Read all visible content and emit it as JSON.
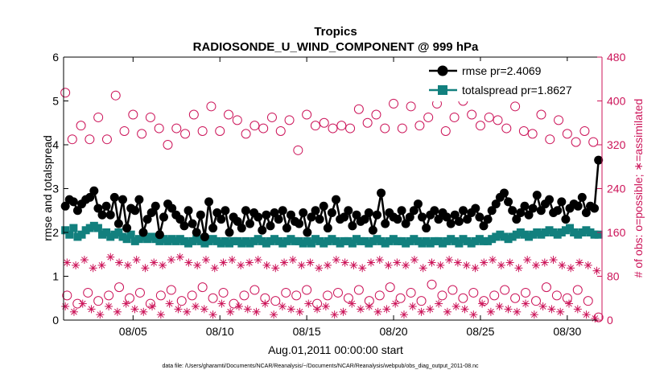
{
  "colors": {
    "rmse": "#000000",
    "spread": "#12807e",
    "obs": "#cc1459",
    "axis": "#000000"
  },
  "chart_data": {
    "type": "line",
    "title": "Tropics",
    "subtitle": "RADIOSONDE_U_WIND_COMPONENT @ 999 hPa",
    "xlabel": "Aug.01,2011 00:00:00 start",
    "ylabel": "rmse and totalspread",
    "ylabel_right": "# of obs: o=possible; ∗=assimilated",
    "footnote": "data file: /Users/gharamti/Documents/NCAR/Reanalysis/~/Documents/NCAR/Reanalysis/webpub/obs_diag_output_2011-08.nc",
    "xlim": [
      1,
      32
    ],
    "ylim": [
      0,
      6
    ],
    "ylim_right": [
      0,
      480
    ],
    "x_ticks": [
      5,
      10,
      15,
      20,
      25,
      30
    ],
    "x_tick_labels": [
      "08/05",
      "08/10",
      "08/15",
      "08/20",
      "08/25",
      "08/30"
    ],
    "y_ticks": [
      0,
      1,
      2,
      3,
      4,
      5,
      6
    ],
    "y_tick_labels": [
      "0",
      "1",
      "2",
      "3",
      "4",
      "5",
      "6"
    ],
    "y_right_ticks": [
      0,
      80,
      160,
      240,
      320,
      400,
      480
    ],
    "y_right_tick_labels": [
      "0",
      "80",
      "160",
      "240",
      "320",
      "400",
      "480"
    ],
    "legend": [
      "rmse pr=2.4069",
      "totalspread pr=1.8627"
    ],
    "legend_position": "top-right",
    "series": [
      {
        "name": "rmse",
        "marker": "circle",
        "values": [
          2.6,
          2.75,
          2.7,
          2.5,
          2.65,
          2.75,
          2.8,
          2.95,
          2.55,
          2.4,
          2.6,
          2.4,
          2.8,
          2.2,
          2.75,
          2.1,
          2.55,
          2.5,
          2.75,
          2.0,
          2.3,
          2.45,
          2.6,
          1.95,
          2.35,
          2.65,
          2.55,
          2.4,
          2.3,
          2.15,
          2.5,
          2.2,
          2.0,
          2.4,
          1.9,
          2.7,
          2.1,
          2.45,
          2.3,
          2.5,
          2.0,
          2.35,
          2.25,
          2.1,
          2.5,
          2.2,
          2.45,
          2.35,
          2.05,
          2.4,
          2.15,
          2.45,
          2.3,
          2.5,
          2.1,
          2.4,
          2.25,
          2.2,
          2.45,
          2.0,
          2.35,
          2.5,
          2.3,
          2.6,
          2.1,
          2.45,
          2.75,
          2.3,
          2.35,
          2.5,
          2.15,
          2.4,
          2.25,
          2.3,
          2.45,
          2.05,
          2.4,
          2.9,
          2.2,
          2.45,
          2.35,
          2.3,
          2.5,
          2.2,
          2.35,
          2.5,
          2.65,
          2.35,
          2.1,
          2.4,
          2.5,
          2.3,
          2.45,
          2.35,
          2.2,
          2.4,
          2.25,
          2.5,
          2.3,
          2.45,
          2.55,
          2.35,
          2.15,
          2.3,
          2.5,
          2.65,
          2.8,
          2.9,
          2.7,
          2.5,
          2.3,
          2.45,
          2.6,
          2.4,
          2.55,
          2.85,
          2.5,
          2.65,
          2.75,
          2.45,
          2.5,
          2.7,
          2.3,
          2.55,
          2.65,
          2.6,
          2.8,
          2.45,
          2.6,
          2.55,
          3.65
        ]
      },
      {
        "name": "totalspread",
        "marker": "square",
        "values": [
          2.05,
          1.95,
          2.1,
          1.9,
          1.95,
          2.05,
          2.1,
          2.15,
          2.1,
          1.95,
          2.0,
          1.9,
          1.95,
          2.0,
          1.9,
          1.85,
          1.95,
          1.8,
          1.85,
          1.9,
          1.85,
          1.9,
          1.85,
          1.8,
          1.85,
          1.8,
          1.85,
          1.8,
          1.85,
          1.8,
          1.75,
          1.8,
          1.85,
          1.8,
          1.75,
          1.8,
          1.85,
          1.8,
          1.75,
          1.8,
          1.75,
          1.8,
          1.8,
          1.75,
          1.8,
          1.75,
          1.8,
          1.85,
          1.8,
          1.75,
          1.8,
          1.85,
          1.8,
          1.75,
          1.8,
          1.85,
          1.8,
          1.8,
          1.75,
          1.8,
          1.75,
          1.85,
          1.8,
          1.75,
          1.8,
          1.85,
          1.8,
          1.75,
          1.8,
          1.8,
          1.75,
          1.85,
          1.8,
          1.8,
          1.75,
          1.8,
          1.85,
          1.8,
          1.75,
          1.8,
          1.85,
          1.8,
          1.8,
          1.75,
          1.8,
          1.85,
          1.8,
          1.75,
          1.8,
          1.75,
          1.8,
          1.8,
          1.75,
          1.8,
          1.85,
          1.8,
          1.75,
          1.85,
          1.8,
          1.75,
          1.8,
          1.85,
          1.8,
          1.8,
          1.85,
          1.9,
          1.95,
          1.9,
          1.85,
          1.9,
          1.95,
          2.0,
          1.95,
          1.9,
          1.95,
          2.0,
          1.95,
          2.0,
          2.05,
          2.0,
          1.95,
          2.0,
          2.05,
          2.1,
          2.0,
          1.95,
          2.0,
          2.05,
          2.0,
          1.95,
          1.95
        ]
      },
      {
        "name": "obs possible (upper band)",
        "marker": "open-circle",
        "y_axis": "right",
        "x": [
          1.1,
          1.5,
          2.0,
          2.5,
          3.0,
          3.5,
          4.0,
          4.5,
          5.0,
          5.5,
          6.0,
          6.5,
          7.0,
          7.5,
          8.0,
          8.5,
          9.0,
          9.5,
          10.0,
          10.5,
          11.0,
          11.5,
          12.0,
          12.5,
          13.0,
          13.5,
          14.0,
          14.5,
          15.0,
          15.5,
          16.0,
          16.5,
          17.0,
          17.5,
          18.0,
          18.5,
          19.0,
          19.5,
          20.0,
          20.5,
          21.0,
          21.5,
          22.0,
          22.5,
          23.0,
          23.5,
          24.0,
          24.5,
          25.0,
          25.5,
          26.0,
          26.5,
          27.0,
          27.5,
          28.0,
          28.5,
          29.0,
          29.5,
          30.0,
          30.5,
          31.0,
          31.5
        ],
        "values": [
          415,
          330,
          355,
          330,
          370,
          330,
          410,
          345,
          375,
          340,
          370,
          350,
          320,
          350,
          340,
          375,
          345,
          390,
          345,
          375,
          365,
          340,
          355,
          350,
          370,
          345,
          365,
          310,
          375,
          355,
          360,
          350,
          355,
          350,
          385,
          360,
          375,
          350,
          395,
          350,
          390,
          355,
          370,
          395,
          345,
          370,
          400,
          375,
          355,
          370,
          365,
          350,
          390,
          345,
          340,
          375,
          330,
          365,
          340,
          325,
          345,
          325
        ]
      },
      {
        "name": "obs possible (lower band)",
        "marker": "open-circle",
        "y_axis": "right",
        "x": [
          1.2,
          1.8,
          2.4,
          3.0,
          3.6,
          4.2,
          4.8,
          5.4,
          6.0,
          6.6,
          7.2,
          7.8,
          8.4,
          9.0,
          9.6,
          10.2,
          10.8,
          11.4,
          12.0,
          12.6,
          13.2,
          13.8,
          14.4,
          15.0,
          15.6,
          16.2,
          16.8,
          17.4,
          18.0,
          18.6,
          19.2,
          19.8,
          20.4,
          21.0,
          21.6,
          22.2,
          22.8,
          23.4,
          24.0,
          24.6,
          25.2,
          25.8,
          26.4,
          27.0,
          27.6,
          28.2,
          28.8,
          29.4,
          30.0,
          30.6,
          31.2,
          31.8
        ],
        "values": [
          45,
          30,
          50,
          35,
          45,
          60,
          40,
          50,
          30,
          45,
          55,
          35,
          45,
          60,
          40,
          50,
          30,
          45,
          55,
          40,
          35,
          50,
          45,
          55,
          30,
          45,
          50,
          40,
          55,
          35,
          45,
          60,
          40,
          50,
          35,
          65,
          45,
          55,
          40,
          50,
          35,
          45,
          55,
          40,
          50,
          35,
          60,
          45,
          40,
          55,
          35,
          5
        ]
      },
      {
        "name": "obs assimilated (upper band)",
        "marker": "asterisk",
        "y_axis": "right",
        "x": [
          1.2,
          1.7,
          2.2,
          2.7,
          3.2,
          3.7,
          4.2,
          4.7,
          5.2,
          5.7,
          6.2,
          6.7,
          7.2,
          7.7,
          8.2,
          8.7,
          9.2,
          9.7,
          10.2,
          10.7,
          11.2,
          11.7,
          12.2,
          12.7,
          13.2,
          13.7,
          14.2,
          14.7,
          15.2,
          15.7,
          16.2,
          16.7,
          17.2,
          17.7,
          18.2,
          18.7,
          19.2,
          19.7,
          20.2,
          20.7,
          21.2,
          21.7,
          22.2,
          22.7,
          23.2,
          23.7,
          24.2,
          24.7,
          25.2,
          25.7,
          26.2,
          26.7,
          27.2,
          27.7,
          28.2,
          28.7,
          29.2,
          29.7,
          30.2,
          30.7,
          31.2,
          31.7
        ],
        "values": [
          105,
          100,
          110,
          95,
          100,
          115,
          105,
          100,
          110,
          95,
          105,
          100,
          110,
          115,
          105,
          100,
          110,
          95,
          105,
          110,
          100,
          105,
          110,
          100,
          95,
          105,
          110,
          100,
          105,
          95,
          100,
          110,
          105,
          100,
          95,
          105,
          110,
          100,
          105,
          100,
          110,
          95,
          105,
          100,
          110,
          105,
          100,
          95,
          105,
          110,
          100,
          105,
          95,
          110,
          100,
          105,
          110,
          100,
          95,
          105,
          100,
          90
        ]
      },
      {
        "name": "obs assimilated (lower band)",
        "marker": "asterisk",
        "y_axis": "right",
        "x": [
          1.1,
          1.6,
          2.1,
          2.6,
          3.1,
          3.6,
          4.1,
          4.6,
          5.1,
          5.6,
          6.1,
          6.6,
          7.1,
          7.6,
          8.1,
          8.6,
          9.1,
          9.6,
          10.1,
          10.6,
          11.1,
          11.6,
          12.1,
          12.6,
          13.1,
          13.6,
          14.1,
          14.6,
          15.1,
          15.6,
          16.1,
          16.6,
          17.1,
          17.6,
          18.1,
          18.6,
          19.1,
          19.6,
          20.1,
          20.6,
          21.1,
          21.6,
          22.1,
          22.6,
          23.1,
          23.6,
          24.1,
          24.6,
          25.1,
          25.6,
          26.1,
          26.6,
          27.1,
          27.6,
          28.1,
          28.6,
          29.1,
          29.6,
          30.1,
          30.6,
          31.1,
          31.6
        ],
        "values": [
          25,
          15,
          30,
          20,
          10,
          25,
          15,
          30,
          20,
          15,
          25,
          10,
          30,
          20,
          15,
          25,
          20,
          10,
          30,
          15,
          25,
          20,
          15,
          30,
          10,
          25,
          20,
          15,
          30,
          20,
          25,
          10,
          15,
          30,
          20,
          25,
          15,
          20,
          30,
          10,
          25,
          15,
          20,
          30,
          15,
          25,
          20,
          10,
          30,
          15,
          25,
          20,
          15,
          30,
          10,
          25,
          20,
          15,
          30,
          20,
          10,
          3
        ]
      }
    ]
  }
}
